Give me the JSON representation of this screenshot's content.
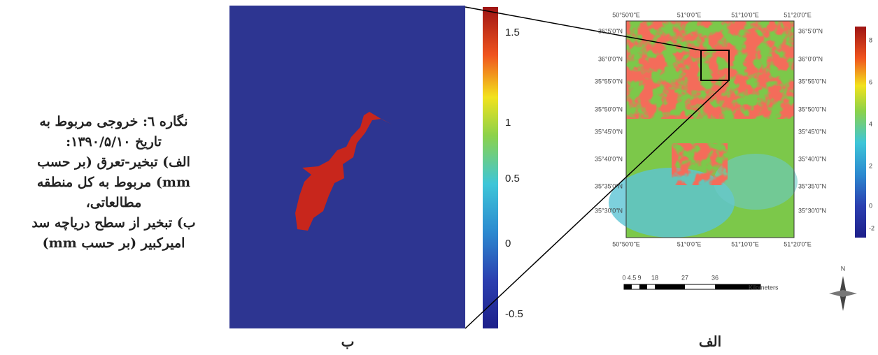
{
  "figure": {
    "caption_lines": [
      "نگاره ٦: خروجی مربوط به",
      "تاریخ ۱۳۹۰/۵/۱۰:",
      "الف) تبخیر-تعرق (بر حسب",
      "mm) مربوط به کل منطقه",
      "مطالعاتی،",
      "ب) تبخیر از سطح دریاچه سد",
      "امیرکبیر (بر حسب mm)"
    ],
    "panel_b": {
      "label": "ب",
      "colorbar_ticks": [
        "1.5",
        "1",
        "0.5",
        "0",
        "-0.5"
      ]
    },
    "panel_a": {
      "label": "الف",
      "top_ticks": [
        "50°50'0\"E",
        "51°0'0\"E",
        "51°10'0\"E",
        "51°20'0\"E"
      ],
      "bottom_ticks": [
        "50°50'0\"E",
        "51°0'0\"E",
        "51°10'0\"E",
        "51°20'0\"E"
      ],
      "left_ticks": [
        "36°5'0\"N",
        "36°0'0\"N",
        "35°55'0\"N",
        "35°50'0\"N",
        "35°45'0\"N",
        "35°40'0\"N",
        "35°35'0\"N",
        "35°30'0\"N"
      ],
      "right_ticks": [
        "36°5'0\"N",
        "36°0'0\"N",
        "35°55'0\"N",
        "35°50'0\"N",
        "35°45'0\"N",
        "35°40'0\"N",
        "35°35'0\"N",
        "35°30'0\"N"
      ],
      "colorbar_ticks": [
        "8",
        "6",
        "4",
        "2",
        "0",
        "-2"
      ],
      "scale_ticks": [
        "0",
        "4.5",
        "9",
        "18",
        "27",
        "36"
      ],
      "scale_unit": "Kilometers",
      "north": "N"
    }
  }
}
